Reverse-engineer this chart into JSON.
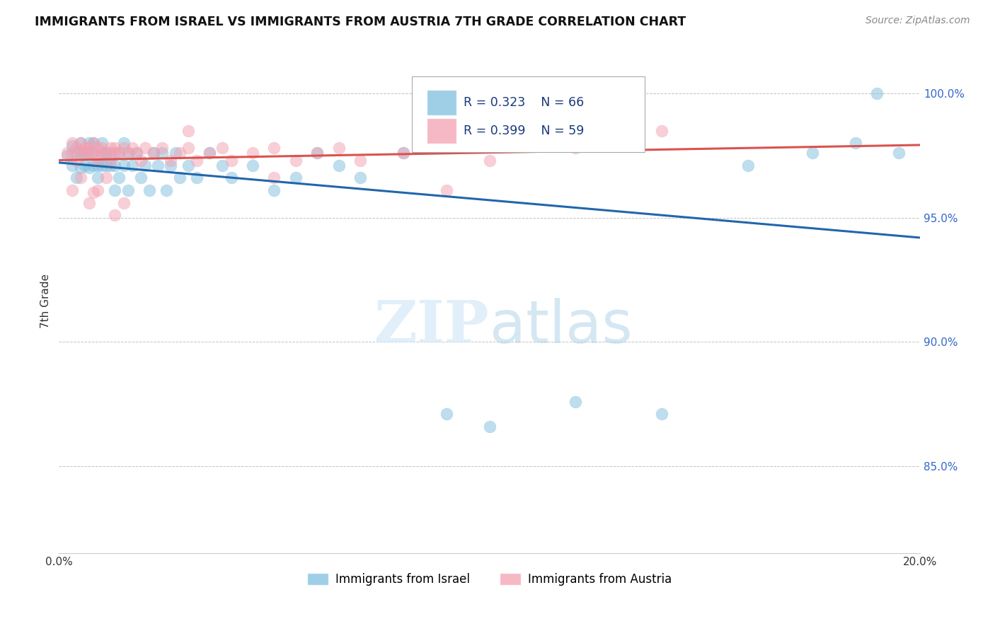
{
  "title": "IMMIGRANTS FROM ISRAEL VS IMMIGRANTS FROM AUSTRIA 7TH GRADE CORRELATION CHART",
  "source": "Source: ZipAtlas.com",
  "ylabel": "7th Grade",
  "legend_israel": "Immigrants from Israel",
  "legend_austria": "Immigrants from Austria",
  "R_israel": 0.323,
  "N_israel": 66,
  "R_austria": 0.399,
  "N_austria": 59,
  "color_israel": "#7fbfdf",
  "color_austria": "#f4a0b0",
  "line_color_israel": "#2166ac",
  "line_color_austria": "#d9534f",
  "background_color": "#ffffff",
  "xlim": [
    0.0,
    0.2
  ],
  "ylim": [
    0.815,
    1.018
  ],
  "ytick_values": [
    0.85,
    0.9,
    0.95,
    1.0
  ],
  "ytick_labels": [
    "85.0%",
    "90.0%",
    "95.0%",
    "100.0%"
  ],
  "xtick_values": [
    0.0,
    0.2
  ],
  "xtick_labels": [
    "0.0%",
    "20.0%"
  ],
  "israel_x": [
    0.002,
    0.003,
    0.003,
    0.004,
    0.004,
    0.005,
    0.005,
    0.005,
    0.006,
    0.006,
    0.007,
    0.007,
    0.007,
    0.008,
    0.008,
    0.008,
    0.009,
    0.009,
    0.01,
    0.01,
    0.01,
    0.011,
    0.011,
    0.012,
    0.012,
    0.013,
    0.013,
    0.014,
    0.014,
    0.015,
    0.015,
    0.016,
    0.016,
    0.017,
    0.018,
    0.019,
    0.02,
    0.021,
    0.022,
    0.023,
    0.024,
    0.025,
    0.026,
    0.027,
    0.028,
    0.03,
    0.032,
    0.035,
    0.038,
    0.04,
    0.045,
    0.05,
    0.055,
    0.06,
    0.065,
    0.07,
    0.08,
    0.09,
    0.1,
    0.12,
    0.14,
    0.16,
    0.175,
    0.185,
    0.19,
    0.195
  ],
  "israel_y": [
    0.975,
    0.971,
    0.979,
    0.976,
    0.966,
    0.97,
    0.976,
    0.98,
    0.971,
    0.976,
    0.97,
    0.976,
    0.98,
    0.971,
    0.976,
    0.98,
    0.966,
    0.971,
    0.971,
    0.976,
    0.98,
    0.971,
    0.976,
    0.971,
    0.976,
    0.961,
    0.971,
    0.966,
    0.976,
    0.971,
    0.98,
    0.961,
    0.976,
    0.971,
    0.976,
    0.966,
    0.971,
    0.961,
    0.976,
    0.971,
    0.976,
    0.961,
    0.971,
    0.976,
    0.966,
    0.971,
    0.966,
    0.976,
    0.971,
    0.966,
    0.971,
    0.961,
    0.966,
    0.976,
    0.971,
    0.966,
    0.976,
    0.871,
    0.866,
    0.876,
    0.871,
    0.971,
    0.976,
    0.98,
    1.0,
    0.976
  ],
  "austria_x": [
    0.002,
    0.003,
    0.003,
    0.004,
    0.004,
    0.005,
    0.005,
    0.006,
    0.006,
    0.007,
    0.007,
    0.008,
    0.008,
    0.009,
    0.009,
    0.01,
    0.01,
    0.011,
    0.012,
    0.012,
    0.013,
    0.013,
    0.014,
    0.015,
    0.016,
    0.017,
    0.018,
    0.019,
    0.02,
    0.022,
    0.024,
    0.026,
    0.028,
    0.03,
    0.032,
    0.035,
    0.038,
    0.04,
    0.045,
    0.05,
    0.055,
    0.06,
    0.065,
    0.07,
    0.08,
    0.09,
    0.1,
    0.12,
    0.14,
    0.003,
    0.005,
    0.007,
    0.009,
    0.011,
    0.013,
    0.015,
    0.03,
    0.05,
    0.008
  ],
  "austria_y": [
    0.976,
    0.976,
    0.98,
    0.978,
    0.973,
    0.977,
    0.98,
    0.976,
    0.978,
    0.976,
    0.978,
    0.976,
    0.98,
    0.973,
    0.978,
    0.976,
    0.978,
    0.976,
    0.978,
    0.973,
    0.976,
    0.978,
    0.976,
    0.978,
    0.976,
    0.978,
    0.976,
    0.973,
    0.978,
    0.976,
    0.978,
    0.973,
    0.976,
    0.978,
    0.973,
    0.976,
    0.978,
    0.973,
    0.976,
    0.978,
    0.973,
    0.976,
    0.978,
    0.973,
    0.976,
    0.961,
    0.973,
    0.978,
    0.985,
    0.961,
    0.966,
    0.956,
    0.961,
    0.966,
    0.951,
    0.956,
    0.985,
    0.966,
    0.96
  ]
}
